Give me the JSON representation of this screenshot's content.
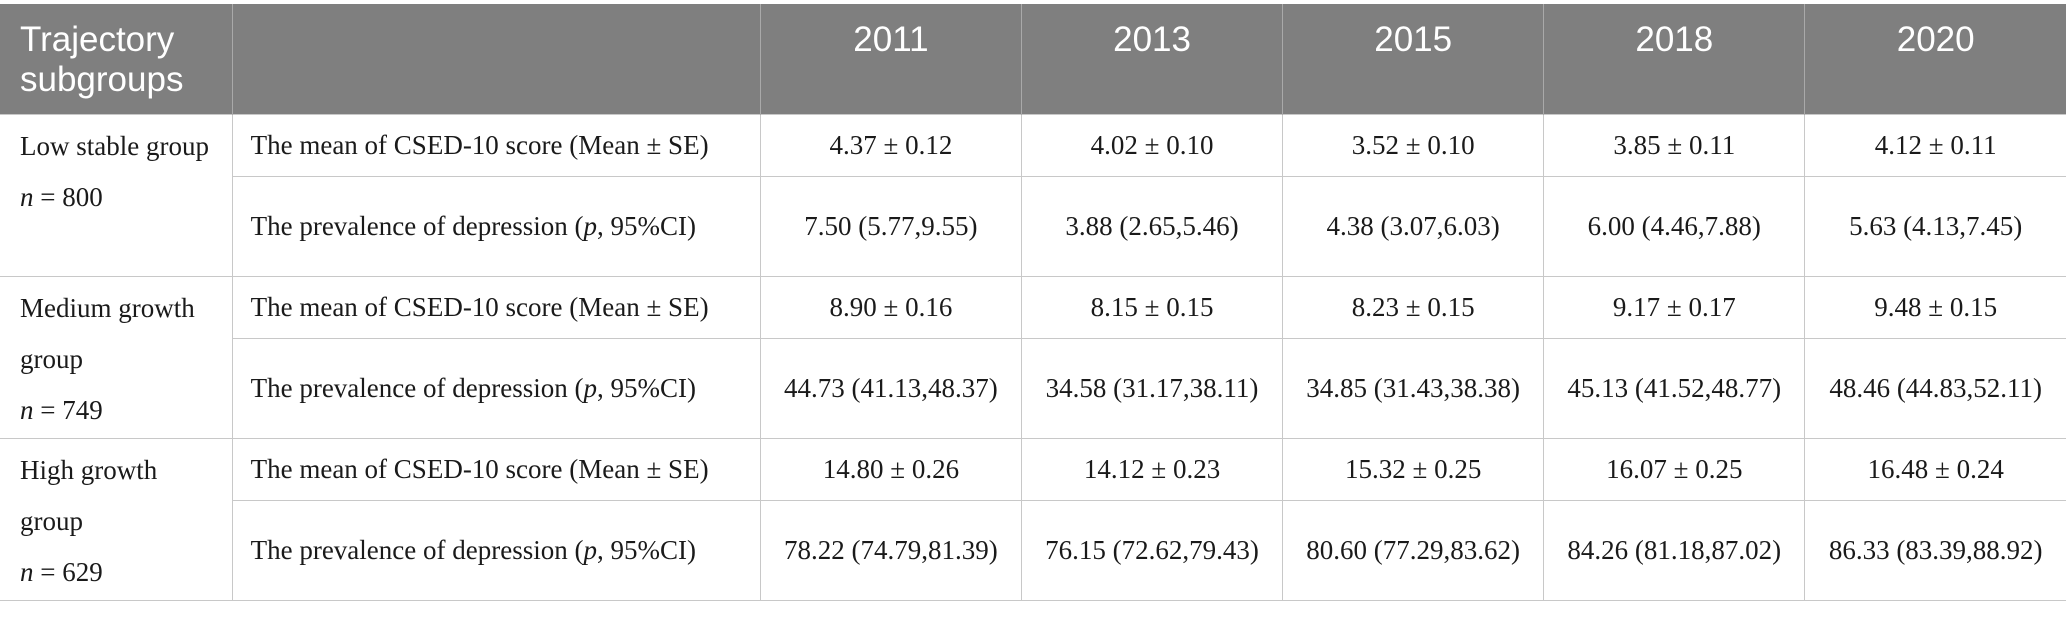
{
  "header": {
    "group_label": "Trajectory subgroups",
    "years": [
      "2011",
      "2013",
      "2015",
      "2018",
      "2020"
    ]
  },
  "groups": [
    {
      "name": "Low stable group",
      "n_label": "n",
      "n_value": " = 800",
      "mean": {
        "label": "The mean of CSED-10 score (Mean ± SE)",
        "values": [
          "4.37 ± 0.12",
          "4.02 ± 0.10",
          "3.52 ± 0.10",
          "3.85 ± 0.11",
          "4.12 ± 0.11"
        ]
      },
      "prevalence": {
        "label_before": "The prevalence of depression (",
        "label_italic": "p",
        "label_after": ", 95%CI)",
        "values": [
          "7.50 (5.77,9.55)",
          "3.88 (2.65,5.46)",
          "4.38 (3.07,6.03)",
          "6.00 (4.46,7.88)",
          "5.63 (4.13,7.45)"
        ]
      }
    },
    {
      "name": "Medium growth group",
      "n_label": "n",
      "n_value": " = 749",
      "mean": {
        "label": "The mean of CSED-10 score (Mean ± SE)",
        "values": [
          "8.90 ± 0.16",
          "8.15 ± 0.15",
          "8.23 ± 0.15",
          "9.17 ± 0.17",
          "9.48 ± 0.15"
        ]
      },
      "prevalence": {
        "label_before": "The prevalence of depression (",
        "label_italic": "p",
        "label_after": ", 95%CI)",
        "values": [
          "44.73 (41.13,48.37)",
          "34.58 (31.17,38.11)",
          "34.85 (31.43,38.38)",
          "45.13 (41.52,48.77)",
          "48.46 (44.83,52.11)"
        ]
      }
    },
    {
      "name": "High growth group",
      "n_label": "n",
      "n_value": " = 629",
      "mean": {
        "label": "The mean of CSED-10 score (Mean ± SE)",
        "values": [
          "14.80 ± 0.26",
          "14.12 ± 0.23",
          "15.32 ± 0.25",
          "16.07 ± 0.25",
          "16.48 ± 0.24"
        ]
      },
      "prevalence": {
        "label_before": "The prevalence of depression (",
        "label_italic": "p",
        "label_after": ", 95%CI)",
        "values": [
          "78.22 (74.79,81.39)",
          "76.15 (72.62,79.43)",
          "80.60 (77.29,83.62)",
          "84.26 (81.18,87.02)",
          "86.33 (83.39,88.92)"
        ]
      }
    }
  ],
  "colors": {
    "header_bg": "#7f7f7f",
    "header_text": "#ffffff",
    "grid_line": "#c8c8c8",
    "body_text": "#1a1a1a"
  }
}
